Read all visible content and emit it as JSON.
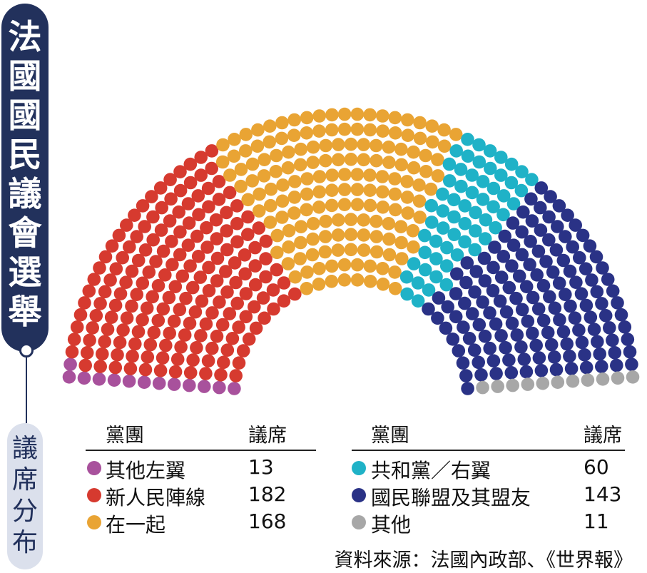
{
  "title": "法國國民議會選舉",
  "subtitle": "議席分布",
  "source": "資料來源：法國內政部、《世界報》",
  "legend": {
    "col_header_party": "黨團",
    "col_header_seats": "議席"
  },
  "chart_data": {
    "type": "hemicycle",
    "title": "法國國民議會選舉",
    "subtitle": "議席分布",
    "total_seats": 577,
    "series": [
      {
        "name": "其他左翼",
        "value": 13,
        "color": "#a8519c"
      },
      {
        "name": "新人民陣線",
        "value": 182,
        "color": "#d63a2f"
      },
      {
        "name": "在一起",
        "value": 168,
        "color": "#e9a434"
      },
      {
        "name": "共和黨／右翼",
        "value": 60,
        "color": "#1fb2c7"
      },
      {
        "name": "國民聯盟及其盟友",
        "value": 143,
        "color": "#2a3286"
      },
      {
        "name": "其他",
        "value": 11,
        "color": "#a7a7a7"
      }
    ]
  }
}
